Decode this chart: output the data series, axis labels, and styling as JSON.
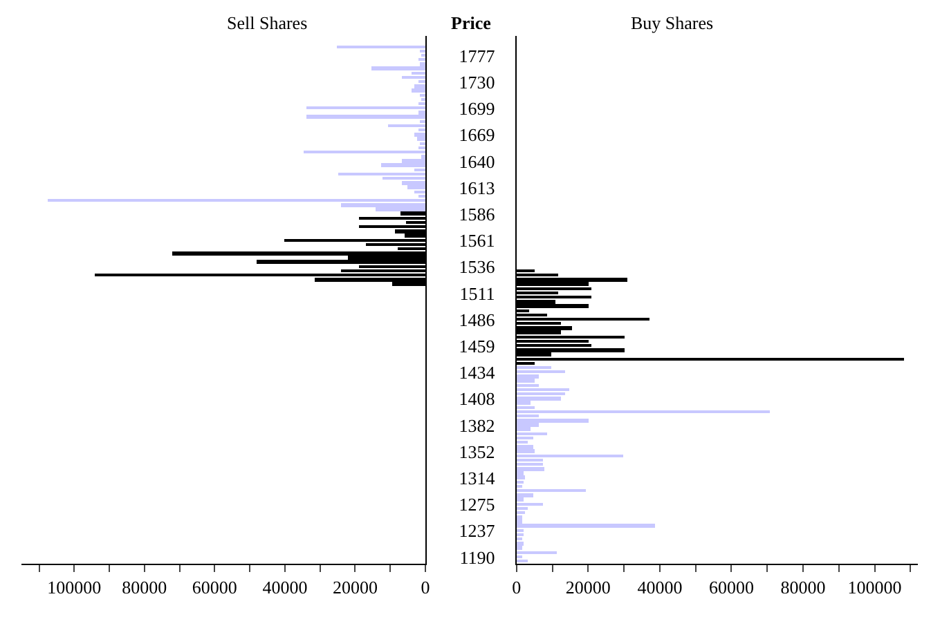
{
  "chart_data": [
    {
      "type": "bar",
      "orientation": "horizontal",
      "title": "Sell Shares",
      "tick_labels": "x",
      "categories": [
        null,
        null,
        null,
        "1777",
        null,
        null,
        null,
        null,
        null,
        "1730",
        null,
        null,
        null,
        null,
        null,
        "1699",
        null,
        null,
        null,
        null,
        null,
        "1669",
        null,
        null,
        null,
        null,
        null,
        "1640",
        null,
        null,
        null,
        null,
        null,
        "1613",
        null,
        null,
        null,
        null,
        null,
        "1586",
        null,
        null,
        null,
        null,
        null,
        "1561",
        null,
        null,
        null,
        null,
        null,
        "1536",
        null,
        null,
        null,
        null,
        null,
        "1511",
        null,
        null,
        null,
        null,
        null,
        "1486",
        null,
        null,
        null,
        null,
        null,
        "1459",
        null,
        null,
        null,
        null,
        null,
        "1434",
        null,
        null,
        null,
        null,
        null,
        "1408",
        null,
        null,
        null,
        null,
        null,
        "1382",
        null,
        null,
        null,
        null,
        null,
        "1352",
        null,
        null,
        null,
        null,
        null,
        "1314",
        null,
        null,
        null,
        null,
        null,
        "1275",
        null,
        null,
        null,
        null,
        null,
        "1237",
        null,
        null,
        null,
        null,
        null,
        "1190",
        null
      ],
      "series": [
        {
          "color": "#c8c8ff",
          "values": [
            null,
            25000,
            1500,
            1000,
            2000,
            1500,
            15400,
            4000,
            6500,
            2000,
            3000,
            4000,
            1500,
            1000,
            2000,
            34000,
            2000,
            34000,
            1500,
            10800,
            2000,
            3000,
            2500,
            1500,
            2000,
            34600,
            1000,
            6500,
            12700,
            3000,
            24600,
            12000,
            6500,
            5000,
            3000,
            2000,
            107700,
            24000,
            14000,
            null,
            null,
            null,
            null,
            null,
            null,
            null,
            null,
            null,
            null,
            null,
            null,
            null,
            null,
            null,
            null,
            null,
            null,
            null,
            null,
            null,
            null,
            null,
            null,
            null,
            null,
            null,
            null,
            null,
            null,
            null,
            null,
            null,
            null,
            null,
            null,
            null,
            null,
            null,
            null,
            null,
            null,
            null,
            null,
            null,
            null,
            null,
            null,
            null,
            null,
            null,
            null,
            null,
            null,
            null,
            null,
            null,
            null,
            null,
            null,
            null,
            null,
            null,
            null,
            null,
            null,
            null,
            null,
            null,
            null,
            null,
            null,
            null,
            null,
            null,
            null,
            null,
            null,
            null,
            null
          ]
        },
        {
          "color": "#000000",
          "values": [
            null,
            null,
            null,
            null,
            null,
            null,
            null,
            null,
            null,
            null,
            null,
            null,
            null,
            null,
            null,
            null,
            null,
            null,
            null,
            null,
            null,
            null,
            null,
            null,
            null,
            null,
            null,
            null,
            null,
            null,
            null,
            null,
            null,
            null,
            null,
            null,
            null,
            null,
            null,
            7000,
            19000,
            5400,
            19000,
            8500,
            6000,
            40000,
            17000,
            7700,
            72000,
            22000,
            48000,
            19000,
            24000,
            94000,
            31500,
            9600,
            null,
            null,
            null,
            null,
            null,
            null,
            null,
            null,
            null,
            null,
            null,
            null,
            null,
            null,
            null,
            null,
            null,
            null,
            null,
            null,
            null,
            null,
            null,
            null,
            null,
            null,
            null,
            null,
            null,
            null,
            null,
            null,
            null,
            null,
            null,
            null,
            null,
            null,
            null,
            null,
            null,
            null,
            null,
            null,
            null,
            null,
            null,
            null,
            null,
            null,
            null,
            null,
            null,
            null,
            null,
            null,
            null,
            null,
            null,
            null,
            null,
            null,
            null
          ]
        }
      ],
      "xlim": [
        115000,
        0
      ],
      "xticks": [
        {
          "value": 110000,
          "label": null
        },
        100000,
        {
          "value": 90000,
          "label": null
        },
        80000,
        {
          "value": 70000,
          "label": null
        },
        60000,
        {
          "value": 50000,
          "label": null
        },
        40000,
        {
          "value": 30000,
          "label": null
        },
        20000,
        {
          "value": 10000,
          "label": null
        },
        0
      ]
    },
    {
      "type": "bar",
      "orientation": "horizontal",
      "title": "Buy Shares",
      "ylabel": "Price",
      "categories": [
        null,
        null,
        null,
        "1777",
        null,
        null,
        null,
        null,
        null,
        "1730",
        null,
        null,
        null,
        null,
        null,
        "1699",
        null,
        null,
        null,
        null,
        null,
        "1669",
        null,
        null,
        null,
        null,
        null,
        "1640",
        null,
        null,
        null,
        null,
        null,
        "1613",
        null,
        null,
        null,
        null,
        null,
        "1586",
        null,
        null,
        null,
        null,
        null,
        "1561",
        null,
        null,
        null,
        null,
        null,
        "1536",
        null,
        null,
        null,
        null,
        null,
        "1511",
        null,
        null,
        null,
        null,
        null,
        "1486",
        null,
        null,
        null,
        null,
        null,
        "1459",
        null,
        null,
        null,
        null,
        null,
        "1434",
        null,
        null,
        null,
        null,
        null,
        "1408",
        null,
        null,
        null,
        null,
        null,
        "1382",
        null,
        null,
        null,
        null,
        null,
        "1352",
        null,
        null,
        null,
        null,
        null,
        "1314",
        null,
        null,
        null,
        null,
        null,
        "1275",
        null,
        null,
        null,
        null,
        null,
        "1237",
        null,
        null,
        null,
        null,
        null,
        "1190",
        null
      ],
      "series": [
        {
          "color": "#000000",
          "values": [
            null,
            null,
            null,
            null,
            null,
            null,
            null,
            null,
            null,
            null,
            null,
            null,
            null,
            null,
            null,
            null,
            null,
            null,
            null,
            null,
            null,
            null,
            null,
            null,
            null,
            null,
            null,
            null,
            null,
            null,
            null,
            null,
            null,
            null,
            null,
            null,
            null,
            null,
            null,
            null,
            null,
            null,
            null,
            null,
            null,
            null,
            null,
            null,
            null,
            null,
            null,
            null,
            5000,
            11700,
            31000,
            20000,
            20700,
            11700,
            20700,
            11000,
            20000,
            3400,
            8600,
            37000,
            12400,
            15400,
            12400,
            30000,
            20000,
            20700,
            30000,
            9800,
            108000,
            5000,
            null,
            null,
            null,
            null,
            null,
            null,
            null,
            null,
            null,
            null,
            null,
            null,
            null,
            null,
            null,
            null,
            null,
            null,
            null,
            null,
            null,
            null,
            null,
            null,
            null,
            null,
            null,
            null,
            null,
            null,
            null,
            null,
            null,
            null,
            null,
            null,
            null,
            null,
            null,
            null,
            null,
            null,
            null,
            null,
            null
          ]
        },
        {
          "color": "#c8c8ff",
          "values": [
            null,
            null,
            null,
            null,
            null,
            null,
            null,
            null,
            null,
            null,
            null,
            null,
            null,
            null,
            null,
            null,
            null,
            null,
            null,
            null,
            null,
            null,
            null,
            null,
            null,
            null,
            null,
            null,
            null,
            null,
            null,
            null,
            null,
            null,
            null,
            null,
            null,
            null,
            null,
            null,
            null,
            null,
            null,
            null,
            null,
            null,
            null,
            null,
            null,
            null,
            null,
            null,
            null,
            null,
            null,
            null,
            null,
            null,
            null,
            null,
            null,
            null,
            null,
            null,
            null,
            null,
            null,
            null,
            null,
            null,
            null,
            null,
            null,
            null,
            9800,
            13500,
            6000,
            5000,
            6000,
            14600,
            13500,
            12400,
            4000,
            5000,
            70700,
            6000,
            20000,
            6000,
            4000,
            8600,
            4500,
            3000,
            4500,
            5000,
            29700,
            7200,
            7500,
            7800,
            2000,
            2500,
            2000,
            1500,
            19500,
            4500,
            2000,
            7200,
            3000,
            2500,
            1500,
            1500,
            38700,
            2000,
            2000,
            1500,
            2000,
            1500,
            11300,
            1500,
            3000
          ]
        }
      ],
      "xlim": [
        0,
        112000
      ],
      "xticks": [
        0,
        {
          "value": 10000,
          "label": null
        },
        20000,
        {
          "value": 30000,
          "label": null
        },
        40000,
        {
          "value": 50000,
          "label": null
        },
        60000,
        {
          "value": 70000,
          "label": null
        },
        80000,
        {
          "value": 90000,
          "label": null
        },
        100000,
        {
          "value": 110000,
          "label": null
        }
      ]
    }
  ]
}
